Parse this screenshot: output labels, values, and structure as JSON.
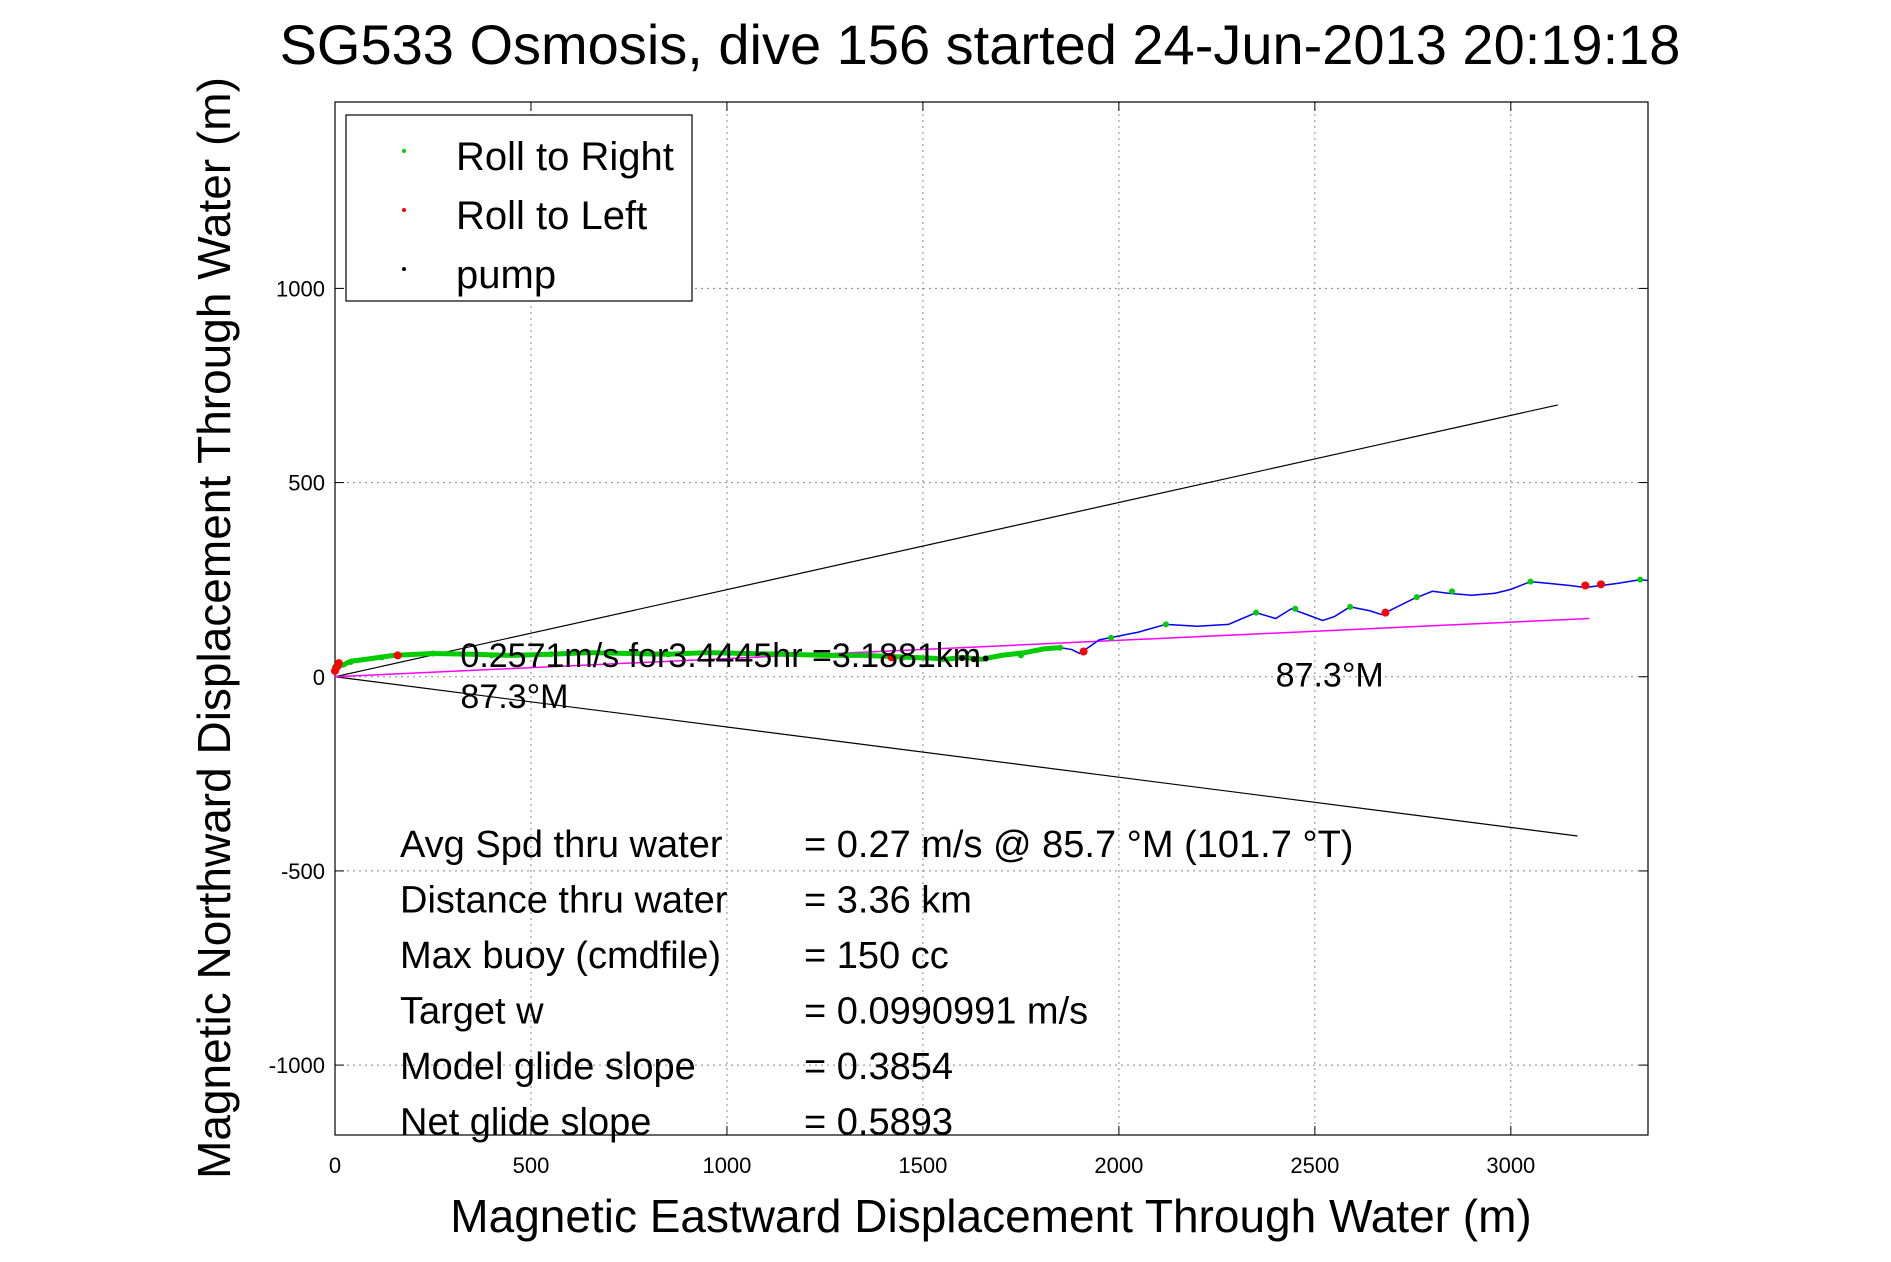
{
  "chart_data": {
    "type": "line",
    "title": "SG533 Osmosis, dive 156 started 24-Jun-2013 20:19:18",
    "xlabel": "Magnetic Eastward Displacement Through Water (m)",
    "ylabel": "Magnetic Northward Displacement Through Water (m)",
    "xlim": [
      0,
      3350
    ],
    "ylim": [
      -1180,
      1480
    ],
    "xticks": [
      0,
      500,
      1000,
      1500,
      2000,
      2500,
      3000
    ],
    "yticks": [
      -1000,
      -500,
      0,
      500,
      1000
    ],
    "grid": true,
    "legend": {
      "placement": "top-left",
      "entries": [
        {
          "label": "Roll to Right",
          "color": "#00cc00"
        },
        {
          "label": "Roll to Left",
          "color": "#ff0000"
        },
        {
          "label": "pump",
          "color": "#000000"
        }
      ]
    },
    "series": [
      {
        "name": "track",
        "color": "#0000ff",
        "x": [
          0,
          20,
          40,
          80,
          150,
          250,
          350,
          450,
          550,
          650,
          750,
          850,
          950,
          1050,
          1150,
          1250,
          1350,
          1420,
          1470,
          1520,
          1560,
          1600,
          1650,
          1700,
          1760,
          1810,
          1850,
          1880,
          1900,
          1950,
          2000,
          2050,
          2120,
          2200,
          2280,
          2350,
          2400,
          2440,
          2480,
          2520,
          2550,
          2590,
          2640,
          2670,
          2700,
          2750,
          2800,
          2840,
          2900,
          2960,
          3000,
          3050,
          3100,
          3150,
          3190,
          3230,
          3270,
          3300,
          3330,
          3350
        ],
        "y": [
          25,
          30,
          40,
          45,
          55,
          60,
          58,
          55,
          58,
          62,
          60,
          58,
          62,
          60,
          58,
          55,
          55,
          52,
          50,
          48,
          45,
          50,
          45,
          55,
          62,
          72,
          75,
          70,
          60,
          95,
          105,
          115,
          135,
          130,
          135,
          165,
          150,
          175,
          160,
          145,
          155,
          180,
          170,
          160,
          175,
          200,
          220,
          215,
          210,
          215,
          225,
          245,
          240,
          235,
          230,
          235,
          240,
          245,
          250,
          248
        ]
      },
      {
        "name": "roll to right points",
        "color": "#00cc00",
        "x": [
          0,
          40,
          120,
          250,
          400,
          550,
          700,
          850,
          1000,
          1150,
          1300,
          1450,
          1550,
          1750,
          1850,
          1980,
          2120,
          2350,
          2450,
          2590,
          2760,
          2850,
          3050,
          3330
        ],
        "y": [
          25,
          38,
          50,
          60,
          55,
          58,
          62,
          58,
          62,
          58,
          55,
          50,
          45,
          55,
          75,
          100,
          135,
          165,
          175,
          180,
          205,
          220,
          245,
          250
        ]
      },
      {
        "name": "roll to left points",
        "color": "#ff0000",
        "x": [
          0,
          5,
          10,
          160,
          1420,
          1910,
          2680,
          3190,
          3230
        ],
        "y": [
          15,
          25,
          35,
          55,
          50,
          65,
          165,
          235,
          238
        ]
      },
      {
        "name": "pump points",
        "color": "#000000",
        "x": [
          1600,
          1630,
          1660
        ],
        "y": [
          48,
          45,
          47
        ]
      },
      {
        "name": "heading line",
        "color": "#ff00ff",
        "x": [
          0,
          3200
        ],
        "y": [
          0,
          150
        ]
      },
      {
        "name": "upper bound",
        "color": "#000000",
        "x": [
          0,
          3120
        ],
        "y": [
          0,
          700
        ]
      },
      {
        "name": "lower bound",
        "color": "#000000",
        "x": [
          0,
          3170
        ],
        "y": [
          0,
          -410
        ]
      }
    ],
    "annotations": [
      {
        "text": "0.2571m/s for3.4445hr =3.1881km",
        "x": 320,
        "y": 25
      },
      {
        "text": "87.3°M",
        "x": 320,
        "y": -80
      },
      {
        "text": "87.3°M",
        "x": 2400,
        "y": -25
      }
    ],
    "stats": [
      {
        "label": "Avg Spd thru water",
        "value": "=  0.27 m/s @  85.7 °M (101.7 °T)"
      },
      {
        "label": "Distance thru water",
        "value": "=  3.36 km"
      },
      {
        "label": "Max buoy (cmdfile)",
        "value": "= 150 cc"
      },
      {
        "label": "Target w",
        "value": "= 0.0990991 m/s"
      },
      {
        "label": "Model glide slope",
        "value": "= 0.3854"
      },
      {
        "label": "Net glide slope",
        "value": "= 0.5893"
      }
    ]
  }
}
